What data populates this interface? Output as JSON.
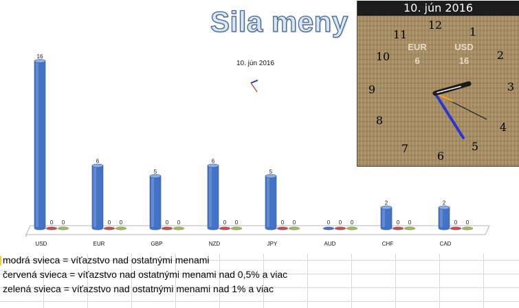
{
  "title": "Sila meny",
  "subtitle": "10. jún 2016",
  "chart_data": {
    "type": "bar",
    "categories": [
      "USD",
      "EUR",
      "GBP",
      "NZD",
      "JPY",
      "AUD",
      "CHF",
      "CAD"
    ],
    "series": [
      {
        "color": "#4472c4",
        "values": [
          16,
          6,
          5,
          6,
          5,
          0,
          2,
          2
        ]
      },
      {
        "color": "#c0504d",
        "values": [
          0,
          0,
          0,
          0,
          0,
          0,
          0,
          0
        ]
      },
      {
        "color": "#9bbb59",
        "values": [
          0,
          0,
          0,
          0,
          0,
          0,
          0,
          0
        ]
      }
    ],
    "ylim": [
      0,
      16
    ],
    "grid": false
  },
  "notes": [
    "modrá svieca = víťazstvo nad ostatnými menami",
    "červená svieca = víťazstvo nad ostatnými menami nad 0,5% a viac",
    "zelená svieca = víťazstvo nad ostatnými menami nad 1% a viac"
  ],
  "clock": {
    "date": "10. jún 2016",
    "numbers": [
      "12",
      "1",
      "2",
      "3",
      "4",
      "5",
      "6",
      "7",
      "8",
      "9",
      "10",
      "11"
    ],
    "labels": [
      {
        "name": "EUR",
        "value": "6"
      },
      {
        "name": "USD",
        "value": "16"
      }
    ]
  }
}
